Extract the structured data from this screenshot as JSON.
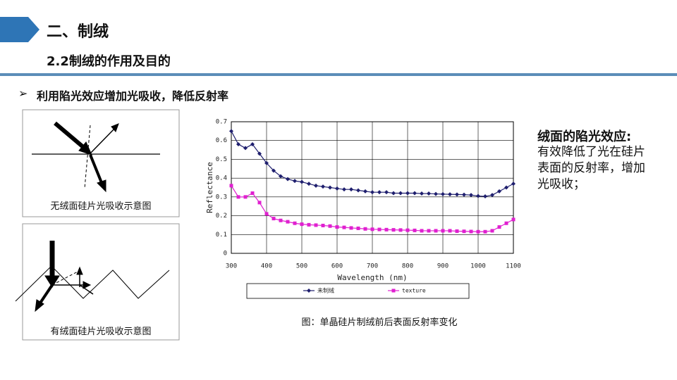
{
  "header": {
    "title": "二、制绒",
    "subtitle": "2.2制绒的作用及目的"
  },
  "bullet": "利用陷光效应增加光吸收，降低反射率",
  "diagrams": [
    {
      "caption": "无绒面硅片光吸收示意图"
    },
    {
      "caption": "有绒面硅片光吸收示意图"
    }
  ],
  "chart_data": {
    "type": "line",
    "x_label": "Wavelength (nm)",
    "y_label": "Reflectance",
    "caption": "图：单晶硅片制绒前后表面反射率变化",
    "x": [
      300,
      320,
      340,
      360,
      380,
      400,
      420,
      440,
      460,
      480,
      500,
      520,
      540,
      560,
      580,
      600,
      620,
      640,
      660,
      680,
      700,
      720,
      740,
      760,
      780,
      800,
      820,
      840,
      860,
      880,
      900,
      920,
      940,
      960,
      980,
      1000,
      1020,
      1040,
      1060,
      1080,
      1100
    ],
    "series": [
      {
        "name": "未制绒",
        "color": "#1f1f6e",
        "marker": "diamond",
        "values": [
          0.65,
          0.58,
          0.56,
          0.58,
          0.53,
          0.48,
          0.44,
          0.41,
          0.395,
          0.385,
          0.38,
          0.37,
          0.36,
          0.355,
          0.35,
          0.345,
          0.34,
          0.34,
          0.335,
          0.33,
          0.325,
          0.325,
          0.325,
          0.32,
          0.32,
          0.32,
          0.32,
          0.318,
          0.318,
          0.316,
          0.315,
          0.314,
          0.313,
          0.312,
          0.31,
          0.305,
          0.303,
          0.31,
          0.33,
          0.35,
          0.37
        ]
      },
      {
        "name": "texture",
        "color": "#e020d0",
        "marker": "square",
        "values": [
          0.36,
          0.3,
          0.3,
          0.32,
          0.27,
          0.21,
          0.185,
          0.175,
          0.168,
          0.16,
          0.155,
          0.152,
          0.15,
          0.148,
          0.145,
          0.14,
          0.138,
          0.135,
          0.133,
          0.13,
          0.128,
          0.127,
          0.126,
          0.125,
          0.124,
          0.123,
          0.122,
          0.12,
          0.12,
          0.12,
          0.12,
          0.12,
          0.118,
          0.117,
          0.116,
          0.115,
          0.115,
          0.12,
          0.14,
          0.16,
          0.18
        ]
      }
    ],
    "xlim": [
      300,
      1100
    ],
    "xticks": [
      300,
      400,
      500,
      600,
      700,
      800,
      900,
      1000,
      1100
    ],
    "ylim": [
      0,
      0.7
    ],
    "yticks": [
      0,
      0.1,
      0.2,
      0.3,
      0.4,
      0.5,
      0.6,
      0.7
    ],
    "grid": true
  },
  "side_note": {
    "title": "绒面的陷光效应:",
    "lines": [
      "有效降低了光在硅片",
      "表面的反射率，增加",
      "光吸收；"
    ]
  }
}
